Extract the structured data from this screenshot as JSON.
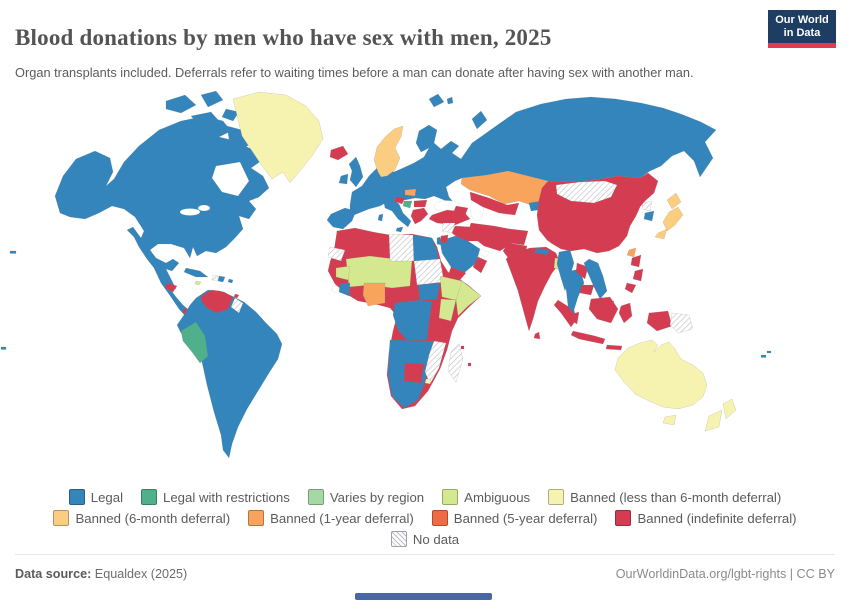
{
  "header": {
    "title": "Blood donations by men who have sex with men, 2025",
    "subtitle": "Organ transplants included. Deferrals refer to waiting times before a man can donate after having sex with another man.",
    "logo": {
      "line1": "Our World",
      "line2": "in Data",
      "bg": "#1d3d63",
      "accent": "#dc3e4e"
    }
  },
  "palette": {
    "legal": "#3485BB",
    "restr": "#4FB08B",
    "varies": "#A4D9A4",
    "ambig": "#D4E88F",
    "b6less": "#F6F2B0",
    "b6": "#FACD80",
    "b1y": "#F8A45C",
    "b5y": "#EF6B43",
    "binf": "#D43D51"
  },
  "legend": {
    "rows": [
      [
        0,
        1,
        2,
        3,
        4
      ],
      [
        5,
        6,
        7,
        8
      ],
      [
        9
      ]
    ],
    "items": [
      {
        "label": "Legal",
        "color": "#3485BB"
      },
      {
        "label": "Legal with restrictions",
        "color": "#4FB08B"
      },
      {
        "label": "Varies by region",
        "color": "#A4D9A4"
      },
      {
        "label": "Ambiguous",
        "color": "#D4E88F"
      },
      {
        "label": "Banned (less than 6-month deferral)",
        "color": "#F6F2B0"
      },
      {
        "label": "Banned (6-month deferral)",
        "color": "#FACD80"
      },
      {
        "label": "Banned (1-year deferral)",
        "color": "#F8A45C"
      },
      {
        "label": "Banned (5-year deferral)",
        "color": "#EF6B43"
      },
      {
        "label": "Banned (indefinite deferral)",
        "color": "#D43D51"
      },
      {
        "label": "No data",
        "color": "hatch"
      }
    ]
  },
  "footer": {
    "source_label": "Data source:",
    "source_value": " Equaldex (2025)",
    "right": "OurWorldinData.org/lgbt-rights | CC BY"
  },
  "ui": {
    "scrollbar_color": "#4867A3"
  },
  "chart_data": {
    "type": "choropleth",
    "title": "Blood donations by men who have sex with men, 2025",
    "subtitle": "Organ transplants included. Deferrals refer to waiting times before a man can donate after having sex with another man.",
    "legend_position": "bottom",
    "categories": [
      {
        "name": "Legal",
        "color": "#3485BB"
      },
      {
        "name": "Legal with restrictions",
        "color": "#4FB08B"
      },
      {
        "name": "Varies by region",
        "color": "#A4D9A4"
      },
      {
        "name": "Ambiguous",
        "color": "#D4E88F"
      },
      {
        "name": "Banned (less than 6-month deferral)",
        "color": "#F6F2B0"
      },
      {
        "name": "Banned (6-month deferral)",
        "color": "#FACD80"
      },
      {
        "name": "Banned (1-year deferral)",
        "color": "#F8A45C"
      },
      {
        "name": "Banned (5-year deferral)",
        "color": "#EF6B43"
      },
      {
        "name": "Banned (indefinite deferral)",
        "color": "#D43D51"
      },
      {
        "name": "No data",
        "color": "hatch-pattern"
      }
    ],
    "regions_by_category": {
      "Legal": [
        "Canada",
        "United States",
        "Mexico",
        "Cuba",
        "Dominican Republic",
        "Brazil",
        "Argentina",
        "Chile",
        "Colombia",
        "Ecuador",
        "Bolivia",
        "Paraguay",
        "Uruguay",
        "United Kingdom",
        "Ireland",
        "France",
        "Spain",
        "Portugal",
        "Italy",
        "Germany",
        "Poland",
        "Ukraine",
        "Finland",
        "Russia",
        "Egypt",
        "Saudi Arabia",
        "South Africa",
        "Namibia",
        "Angola",
        "Zambia",
        "Zimbabwe",
        "DR Congo",
        "South Sudan",
        "Thailand",
        "Vietnam",
        "Myanmar",
        "South Korea",
        "Nepal",
        "Kyrgyzstan",
        "Fiji"
      ],
      "Legal with restrictions": [
        "Peru"
      ],
      "Varies by region": [],
      "Ambiguous": [
        "Mali",
        "Niger",
        "Chad",
        "Guinea",
        "Ethiopia",
        "Somalia",
        "Kenya",
        "Bangladesh",
        "Jamaica"
      ],
      "Banned (less than 6-month deferral)": [
        "Greenland",
        "Australia",
        "New Zealand",
        "Eswatini"
      ],
      "Banned (6-month deferral)": [
        "Norway",
        "Sweden",
        "Japan"
      ],
      "Banned (1-year deferral)": [
        "Kazakhstan",
        "Nigeria",
        "Hungary",
        "Taiwan"
      ],
      "Banned (5-year deferral)": [],
      "Banned (indefinite deferral)": [
        "China",
        "India",
        "Pakistan",
        "Afghanistan",
        "Iran",
        "Iraq",
        "Turkey",
        "Greece",
        "Bulgaria",
        "Croatia",
        "Iceland",
        "Venezuela",
        "Morocco",
        "Algeria",
        "Tunisia",
        "Mauritania",
        "Senegal",
        "Cameroon",
        "Central African Republic",
        "Uganda",
        "Tanzania",
        "Botswana",
        "Yemen",
        "Oman",
        "Uzbekistan",
        "Turkmenistan",
        "Sri Lanka",
        "Laos",
        "Cambodia",
        "Malaysia",
        "Indonesia",
        "Philippines"
      ],
      "No data": [
        "Mongolia",
        "Libya",
        "Sudan",
        "Western Sahara",
        "Mozambique",
        "Madagascar",
        "Papua New Guinea",
        "North Korea",
        "Syria",
        "Guyana",
        "Haiti"
      ]
    }
  }
}
